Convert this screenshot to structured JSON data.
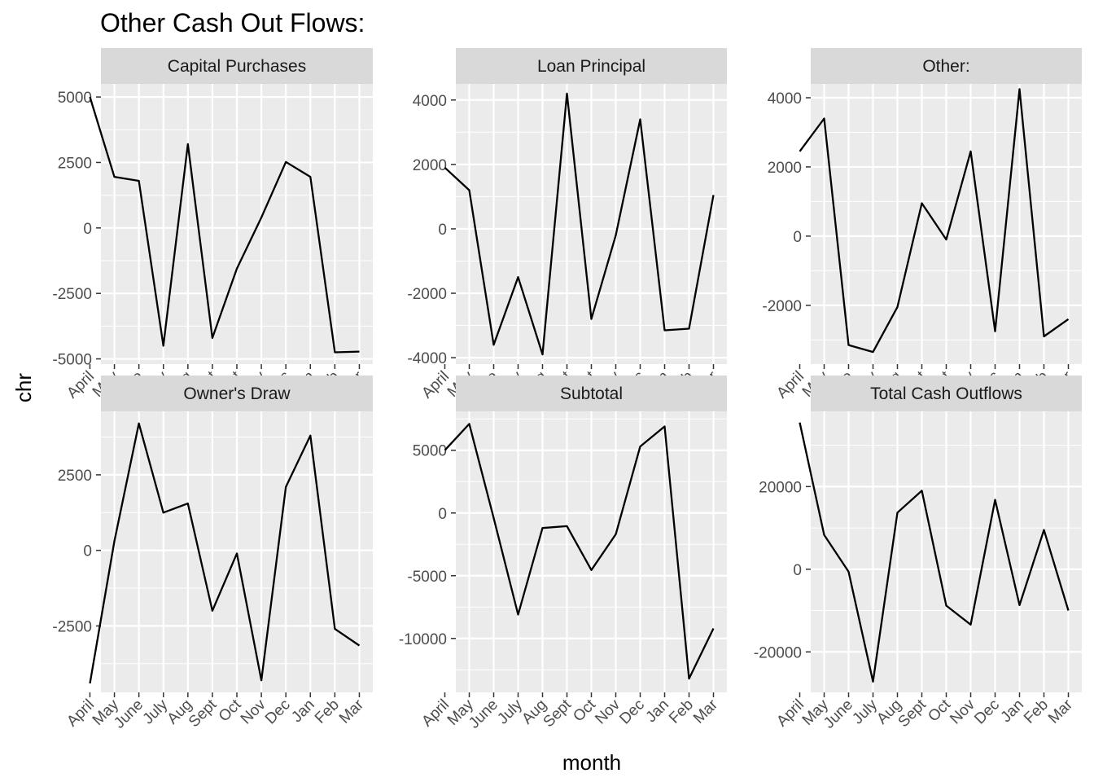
{
  "chart_data": {
    "type": "line",
    "title": "Other Cash Out Flows:",
    "xlabel": "month",
    "ylabel": "chr",
    "x": [
      "April",
      "May",
      "June",
      "July",
      "Aug",
      "Sept",
      "Oct",
      "Nov",
      "Dec",
      "Jan",
      "Feb",
      "Mar"
    ],
    "grid": true,
    "facets": [
      {
        "name": "Capital Purchases",
        "ylim": [
          -5200,
          5500
        ],
        "yticks": [
          5000,
          2500,
          0,
          -2500,
          -5000
        ],
        "ytick_labels": [
          "5000",
          "2500",
          "0",
          "-2500",
          "-5000"
        ],
        "values": [
          5000,
          1950,
          1800,
          -4500,
          3200,
          -4200,
          -1550,
          400,
          2520,
          1950,
          -4750,
          -4720
        ]
      },
      {
        "name": "Loan Principal",
        "ylim": [
          -4200,
          4500
        ],
        "yticks": [
          4000,
          2000,
          0,
          -2000,
          -4000
        ],
        "ytick_labels": [
          "4000",
          "2000",
          "0",
          "-2000",
          "-4000"
        ],
        "values": [
          1900,
          1200,
          -3600,
          -1500,
          -3900,
          4200,
          -2800,
          -200,
          3400,
          -3150,
          -3100,
          1050
        ]
      },
      {
        "name": "Other:",
        "ylim": [
          -3700,
          4400
        ],
        "yticks": [
          4000,
          2000,
          0,
          -2000
        ],
        "ytick_labels": [
          "4000",
          "2000",
          "0",
          "-2000"
        ],
        "values": [
          2450,
          3400,
          -3150,
          -3350,
          -2050,
          950,
          -100,
          2450,
          -2750,
          4250,
          -2900,
          -2400
        ]
      },
      {
        "name": "Owner's Draw",
        "ylim": [
          -4700,
          4600
        ],
        "yticks": [
          2500,
          0,
          -2500
        ],
        "ytick_labels": [
          "2500",
          "0",
          "-2500"
        ],
        "values": [
          -4400,
          300,
          4200,
          1250,
          1550,
          -2000,
          -100,
          -4300,
          2100,
          3800,
          -2600,
          -3150
        ]
      },
      {
        "name": "Subtotal",
        "ylim": [
          -14300,
          8100
        ],
        "yticks": [
          5000,
          0,
          -5000,
          -10000
        ],
        "ytick_labels": [
          "5000",
          "0",
          "-5000",
          "-10000"
        ],
        "values": [
          5000,
          7100,
          -400,
          -8100,
          -1200,
          -1050,
          -4550,
          -1700,
          5300,
          6900,
          -13200,
          -9200
        ]
      },
      {
        "name": "Total Cash Outflows",
        "ylim": [
          -29800,
          38200
        ],
        "yticks": [
          20000,
          0,
          -20000
        ],
        "ytick_labels": [
          "20000",
          "0",
          "-20000"
        ],
        "values": [
          35500,
          8300,
          -600,
          -27200,
          13700,
          19000,
          -8800,
          -13400,
          16800,
          -8700,
          9500,
          -10000
        ]
      }
    ]
  },
  "colors": {
    "panel_background": "#ebebeb",
    "strip_background": "#d9d9d9",
    "grid_line": "#ffffff",
    "series_line": "#000000",
    "tick_mark": "#333333"
  }
}
